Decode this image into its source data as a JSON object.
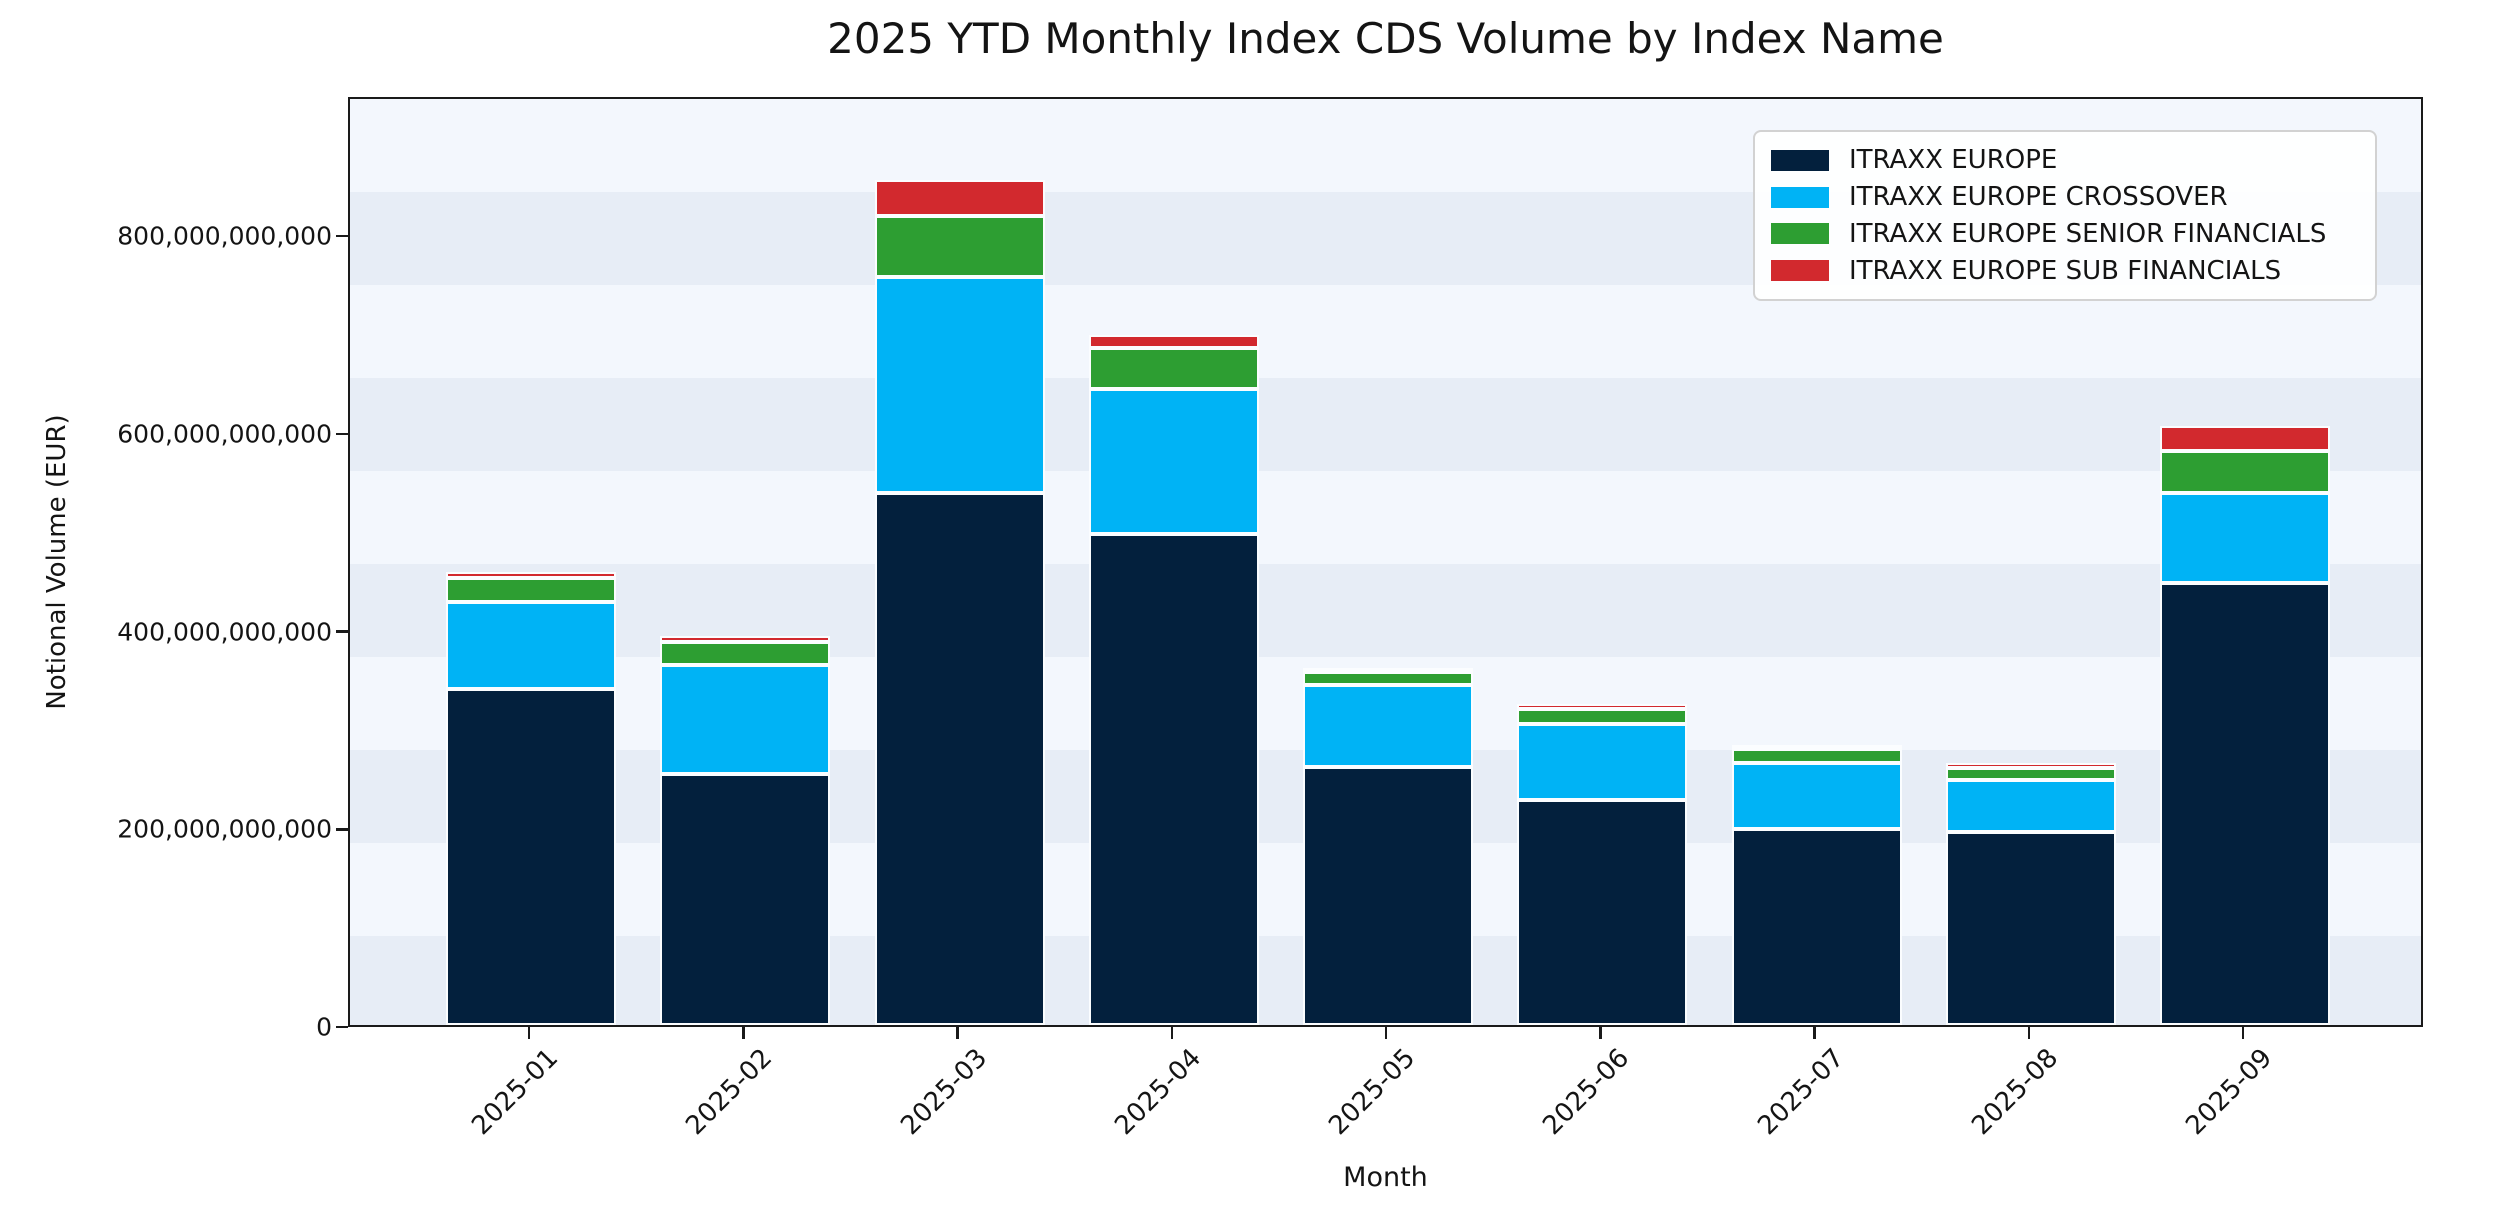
{
  "chart_data": {
    "type": "bar",
    "stacked": true,
    "title": "2025 YTD Monthly Index CDS Volume by Index Name",
    "xlabel": "Month",
    "ylabel": "Notional Volume (EUR)",
    "categories": [
      "2025-01",
      "2025-02",
      "2025-03",
      "2025-04",
      "2025-05",
      "2025-06",
      "2025-07",
      "2025-08",
      "2025-09"
    ],
    "series": [
      {
        "name": "ITRAXX EUROPE",
        "color": "#03203d",
        "values": [
          340000000000,
          254000000000,
          538000000000,
          497000000000,
          261000000000,
          228000000000,
          198000000000,
          195000000000,
          447000000000
        ]
      },
      {
        "name": "ITRAXX EUROPE CROSSOVER",
        "color": "#00b3f5",
        "values": [
          87500000000,
          110000000000,
          219000000000,
          146500000000,
          82500000000,
          76500000000,
          67000000000,
          53000000000,
          91000000000
        ]
      },
      {
        "name": "ITRAXX EUROPE SENIOR FINANCIALS",
        "color": "#2d9e32",
        "values": [
          24500000000,
          23500000000,
          61500000000,
          41500000000,
          13500000000,
          15500000000,
          14500000000,
          12000000000,
          43000000000
        ]
      },
      {
        "name": "ITRAXX EUROPE SUB FINANCIALS",
        "color": "#d2292e",
        "values": [
          6000000000,
          6000000000,
          36000000000,
          13000000000,
          4000000000,
          4500000000,
          4000000000,
          5000000000,
          25000000000
        ]
      }
    ],
    "ylim": [
      0,
      940000000000
    ],
    "y_ticks": [
      {
        "value": 0,
        "label": "0"
      },
      {
        "value": 200000000000,
        "label": "200,000,000,000"
      },
      {
        "value": 400000000000,
        "label": "400,000,000,000"
      },
      {
        "value": 600000000000,
        "label": "600,000,000,000"
      },
      {
        "value": 800000000000,
        "label": "800,000,000,000"
      }
    ],
    "legend_position": "upper right",
    "grid": false
  }
}
